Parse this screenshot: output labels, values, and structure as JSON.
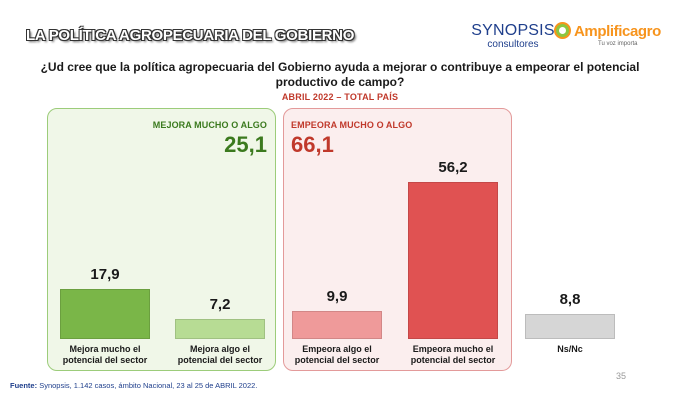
{
  "header": {
    "title": "LA POLÍTICA AGROPECUARIA DEL GOBIERNO",
    "logo_synopsis_main": "SYNOPSIS",
    "logo_synopsis_sub": "consultores",
    "logo_amplifica_name": "Amplificagro",
    "logo_amplifica_tag": "Tu voz importa"
  },
  "question": "¿Ud cree que la política agropecuaria del Gobierno ayuda a mejorar o contribuye a empeorar el potencial productivo de campo?",
  "subtitle": "ABRIL 2022 – TOTAL PAÍS",
  "groups": {
    "mejora": {
      "label": "MEJORA MUCHO O ALGO",
      "total": "25,1",
      "color": "#3b7a1e"
    },
    "empeora": {
      "label": "EMPEORA MUCHO O ALGO",
      "total": "66,1",
      "color": "#c0392b"
    }
  },
  "chart_data": {
    "type": "bar",
    "title": "",
    "xlabel": "",
    "ylabel": "",
    "ylim": [
      0,
      60
    ],
    "categories": [
      "Mejora mucho el potencial del sector",
      "Mejora algo el potencial del sector",
      "Empeora algo el potencial del sector",
      "Empeora mucho el potencial del sector",
      "Ns/Nc"
    ],
    "values": [
      17.9,
      7.2,
      9.9,
      56.2,
      8.8
    ],
    "value_labels": [
      "17,9",
      "7,2",
      "9,9",
      "56,2",
      "8,8"
    ],
    "colors": [
      "#7ab648",
      "#b7dc94",
      "#ef9a9a",
      "#e05252",
      "#d6d6d6"
    ],
    "grid": false,
    "legend": "none"
  },
  "footer": {
    "source_label": "Fuente:",
    "source_text": "Synopsis, 1.142 casos, ámbito Nacional, 23 al 25 de ABRIL 2022.",
    "page_number": "35"
  }
}
